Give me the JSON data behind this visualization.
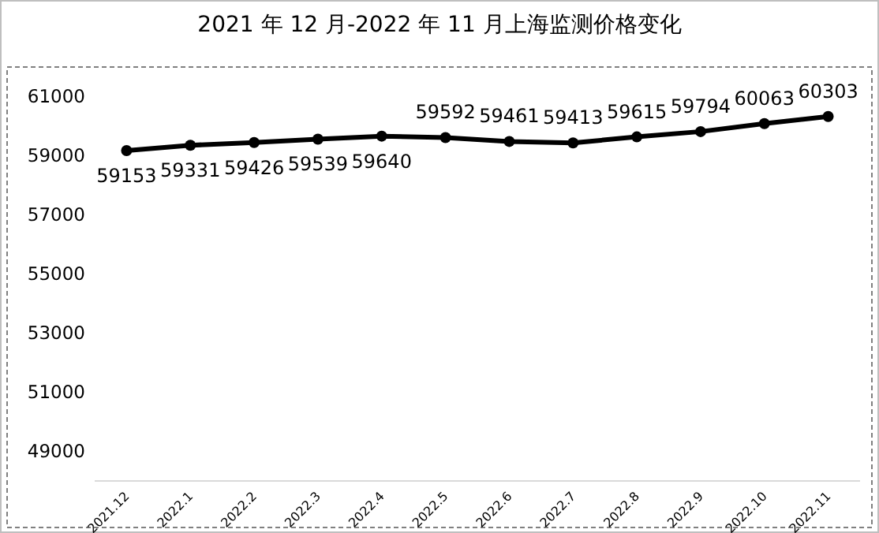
{
  "chart_data": {
    "type": "line",
    "title": "2021 年 12 月-2022 年 11 月上海监测价格变化",
    "categories": [
      "2021.12",
      "2022.1",
      "2022.2",
      "2022.3",
      "2022.4",
      "2022.5",
      "2022.6",
      "2022.7",
      "2022.8",
      "2022.9",
      "2022.10",
      "2022.11"
    ],
    "values": [
      59153,
      59331,
      59426,
      59539,
      59640,
      59592,
      59461,
      59413,
      59615,
      59794,
      60063,
      60303
    ],
    "color": "#000000",
    "marker": "circle",
    "line_style": "solid",
    "data_labels": true,
    "grid": false,
    "ylim": [
      48000,
      62000
    ],
    "yticks": [
      49000,
      51000,
      53000,
      55000,
      57000,
      59000,
      61000
    ]
  }
}
